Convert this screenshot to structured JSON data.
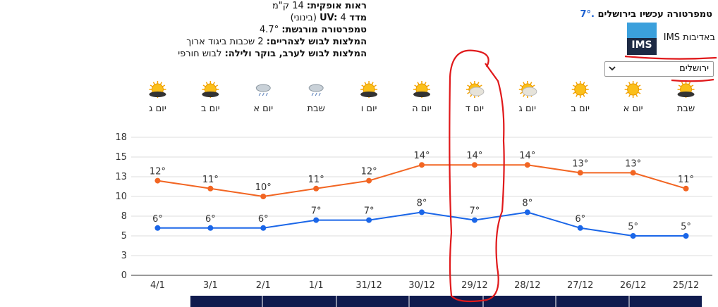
{
  "header": {
    "current_label": "טמפרטורה עכשיו בירושלים",
    "current_value": "7°.",
    "courtesy": "באדיבות IMS",
    "logo": "IMS",
    "city_select": "ירושלים"
  },
  "details": [
    {
      "label": "ראות אופקית:",
      "value": "14 ק\"מ"
    },
    {
      "label": "מדד UV:",
      "value": "4 (בינוני)"
    },
    {
      "label": "טמפרטורה מורגשת:",
      "value": "4.7°"
    },
    {
      "label": "המלצות לבוש לצהריים:",
      "value": "2 שכבות ביגוד ארוך"
    },
    {
      "label": "המלצות לבוש לערב, בוקר ולילה:",
      "value": "לבוש חורפי"
    }
  ],
  "forecast_days": [
    "יום ג",
    "יום ב",
    "יום א",
    "שבת",
    "יום ו",
    "יום ה",
    "יום ד",
    "יום ג",
    "יום ב",
    "יום א",
    "שבת"
  ],
  "chart_data": {
    "type": "line",
    "categories": [
      "4/1",
      "3/1",
      "2/1",
      "1/1",
      "31/12",
      "30/12",
      "29/12",
      "28/12",
      "27/12",
      "26/12",
      "25/12"
    ],
    "series": [
      {
        "color": "#f26522",
        "values": [
          12,
          11,
          10,
          11,
          12,
          14,
          14,
          14,
          13,
          13,
          11
        ],
        "value_labels": [
          "12°",
          "11°",
          "10°",
          "11°",
          "12°",
          "14°",
          "14°",
          "14°",
          "13°",
          "13°",
          "11°"
        ]
      },
      {
        "color": "#1a66e8",
        "values": [
          6,
          6,
          6,
          7,
          7,
          8,
          7,
          8,
          6,
          5,
          5
        ],
        "value_labels": [
          "6°",
          "6°",
          "6°",
          "7°",
          "7°",
          "8°",
          "7°",
          "8°",
          "6°",
          "5°",
          "5°"
        ]
      }
    ],
    "ylim": [
      0,
      17.5
    ],
    "yticks": [
      0,
      {
        "value": 2.5,
        "label": "3"
      },
      5,
      {
        "value": 7.5,
        "label": "8"
      },
      10,
      {
        "value": 12.5,
        "label": "13"
      },
      15,
      {
        "value": 17.5,
        "label": "18"
      }
    ],
    "grid": true
  }
}
